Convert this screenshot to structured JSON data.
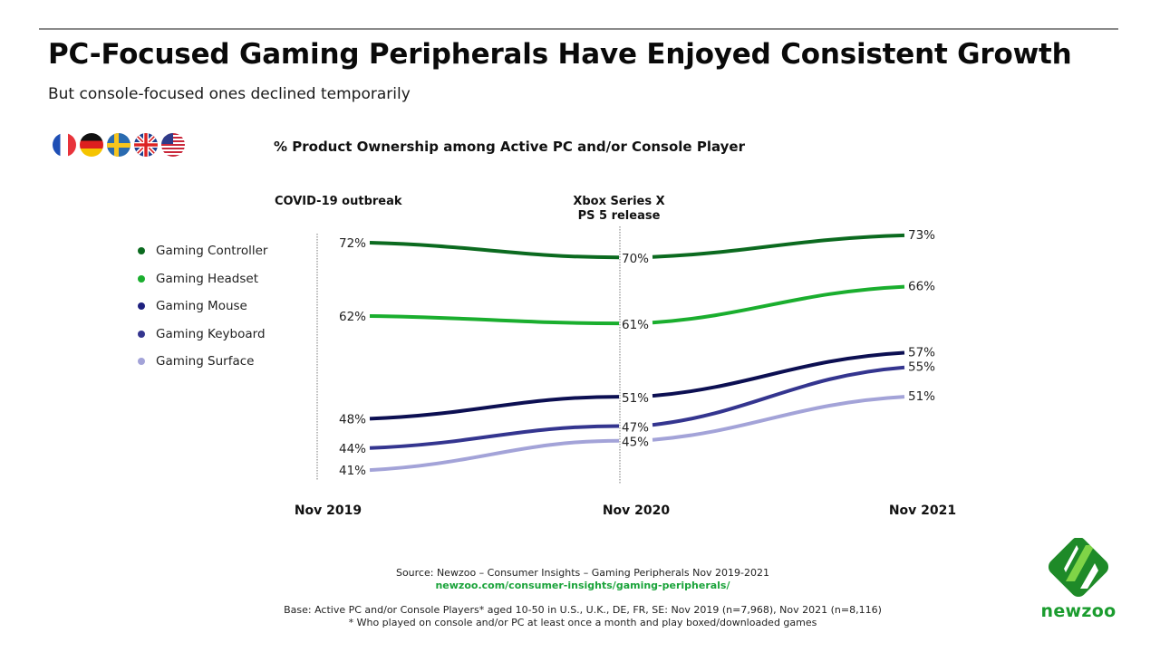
{
  "header": {
    "title": "PC-Focused Gaming Peripherals Have Enjoyed Consistent Growth",
    "subtitle": "But console-focused ones declined temporarily"
  },
  "flags": [
    {
      "name": "france-flag-icon"
    },
    {
      "name": "germany-flag-icon"
    },
    {
      "name": "sweden-flag-icon"
    },
    {
      "name": "uk-flag-icon"
    },
    {
      "name": "usa-flag-icon"
    }
  ],
  "annotations": {
    "covid": "COVID-19 outbreak",
    "console_release_line1": "Xbox Series X",
    "console_release_line2": "PS 5 release"
  },
  "chart_data": {
    "type": "line",
    "title": "% Product Ownership among Active PC and/or Console Player",
    "xlabel": "",
    "ylabel": "",
    "categories": [
      "Nov 2019",
      "Nov 2020",
      "Nov 2021"
    ],
    "ylim": [
      41,
      73
    ],
    "grid": false,
    "legend_position": "left",
    "value_suffix": "%",
    "event_markers": [
      {
        "at": "Nov 2019",
        "label": "COVID-19 outbreak"
      },
      {
        "at": "Nov 2020",
        "label": "Xbox Series X PS 5 release"
      }
    ],
    "series": [
      {
        "name": "Gaming Controller",
        "color": "#0b6a1f",
        "values": [
          72,
          70,
          73
        ]
      },
      {
        "name": "Gaming Headset",
        "color": "#1aae2e",
        "values": [
          62,
          61,
          66
        ]
      },
      {
        "name": "Gaming Mouse",
        "color": "#0c0f52",
        "values": [
          48,
          51,
          57
        ]
      },
      {
        "name": "Gaming Keyboard",
        "color": "#34358f",
        "values": [
          44,
          47,
          55
        ]
      },
      {
        "name": "Gaming Surface",
        "color": "#a3a3d8",
        "values": [
          41,
          45,
          51
        ]
      }
    ]
  },
  "footer": {
    "source": "Source: Newzoo – Consumer Insights – Gaming Peripherals Nov 2019-2021",
    "link": "newzoo.com/consumer-insights/gaming-peripherals/",
    "base": "Base: Active PC and/or Console Players* aged 10-50 in U.S., U.K., DE, FR, SE: Nov 2019 (n=7,968), Nov 2021 (n=8,116)",
    "note": "* Who played on console and/or PC at least once a month and play boxed/downloaded games"
  },
  "logo": {
    "text": "newzoo",
    "color": "#1a9c2e"
  }
}
